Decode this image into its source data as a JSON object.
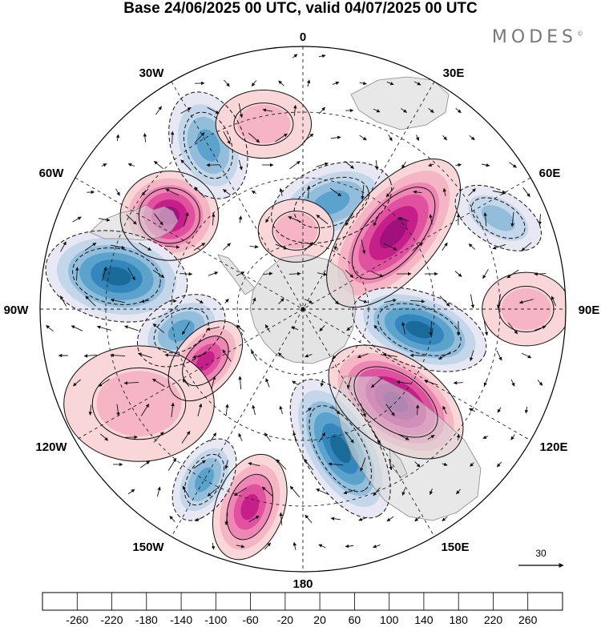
{
  "title": "Base 24/06/2025 00 UTC, valid 04/07/2025 00 UTC",
  "brand": "MODES",
  "brand_mark": "©",
  "longitude_labels": {
    "n": "0",
    "e30": "30E",
    "e60": "60E",
    "e90": "90E",
    "e120": "120E",
    "e150": "150E",
    "s": "180",
    "w150": "150W",
    "w120": "120W",
    "w90": "90W",
    "w60": "60W",
    "w30": "30W"
  },
  "reference_vector": {
    "label": "30"
  },
  "colorbar": {
    "ticks": [
      "-260",
      "-220",
      "-180",
      "-140",
      "-100",
      "-60",
      "-20",
      "20",
      "60",
      "100",
      "140",
      "180",
      "220",
      "260"
    ],
    "colors": [
      "#0f3f5f",
      "#1a6a9a",
      "#3387bd",
      "#5ba2cc",
      "#92bedc",
      "#c3d6ea",
      "#e8e8f4",
      "#ffffff",
      "#f9d7d9",
      "#f5b5c4",
      "#ee87b4",
      "#e0529f",
      "#c61f8a",
      "#a0117e",
      "#6e0a7a"
    ]
  },
  "anomalies": [
    {
      "lon": -55,
      "r": 0.62,
      "value": 240,
      "size": 0.17,
      "elong": 1.1,
      "rot": 0
    },
    {
      "lon": -30,
      "r": 0.72,
      "value": -140,
      "size": 0.14,
      "elong": 1.5,
      "rot": 70
    },
    {
      "lon": -80,
      "r": 0.72,
      "value": -240,
      "size": 0.17,
      "elong": 1.6,
      "rot": 10
    },
    {
      "lon": -100,
      "r": 0.47,
      "value": -140,
      "size": 0.12,
      "elong": 1.5,
      "rot": -30
    },
    {
      "lon": -118,
      "r": 0.42,
      "value": 180,
      "size": 0.11,
      "elong": 1.6,
      "rot": -50
    },
    {
      "lon": -120,
      "r": 0.72,
      "value": 60,
      "size": 0.22,
      "elong": 1.3,
      "rot": 0
    },
    {
      "lon": 15,
      "r": 0.42,
      "value": -160,
      "size": 0.14,
      "elong": 1.7,
      "rot": -20
    },
    {
      "lon": 50,
      "r": 0.45,
      "value": 250,
      "size": 0.17,
      "elong": 2.0,
      "rot": -50
    },
    {
      "lon": 65,
      "r": 0.82,
      "value": -120,
      "size": 0.1,
      "elong": 1.8,
      "rot": 30
    },
    {
      "lon": 90,
      "r": 0.85,
      "value": 80,
      "size": 0.14,
      "elong": 1.2,
      "rot": 0
    },
    {
      "lon": 100,
      "r": 0.45,
      "value": -220,
      "size": 0.14,
      "elong": 1.9,
      "rot": 20
    },
    {
      "lon": 135,
      "r": 0.5,
      "value": 260,
      "size": 0.17,
      "elong": 1.7,
      "rot": 35
    },
    {
      "lon": 165,
      "r": 0.55,
      "value": -220,
      "size": 0.14,
      "elong": 2.1,
      "rot": 60
    },
    {
      "lon": -165,
      "r": 0.78,
      "value": 200,
      "size": 0.13,
      "elong": 1.6,
      "rot": -70
    },
    {
      "lon": -150,
      "r": 0.75,
      "value": -160,
      "size": 0.1,
      "elong": 1.7,
      "rot": -60
    },
    {
      "lon": -12,
      "r": 0.72,
      "value": 60,
      "size": 0.13,
      "elong": 1.4,
      "rot": 0
    },
    {
      "lon": -5,
      "r": 0.3,
      "value": 60,
      "size": 0.12,
      "elong": 1.2,
      "rot": 0
    }
  ]
}
